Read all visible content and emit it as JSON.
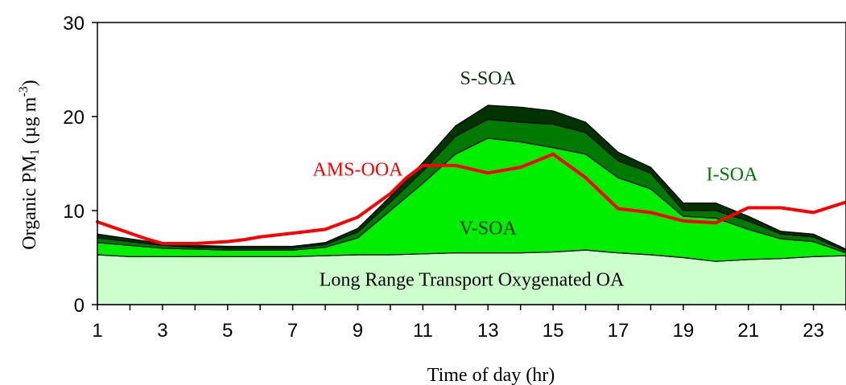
{
  "chart_data": {
    "type": "area",
    "xlabel": "Time of day (hr)",
    "ylabel": "Organic PM₁ (µg m⁻³)",
    "ylabel_parts": {
      "main": "Organic PM",
      "sub": "1",
      "unit_open": " (µg m",
      "sup": "-3",
      "unit_close": ")"
    },
    "xlim": [
      1,
      24
    ],
    "ylim": [
      0,
      30
    ],
    "x_ticks": [
      1,
      3,
      5,
      7,
      9,
      11,
      13,
      15,
      17,
      19,
      21,
      23
    ],
    "y_ticks": [
      0,
      10,
      20,
      30
    ],
    "grid": false,
    "x": [
      1,
      2,
      3,
      4,
      5,
      6,
      7,
      8,
      9,
      10,
      11,
      12,
      13,
      14,
      15,
      16,
      17,
      18,
      19,
      20,
      21,
      22,
      23,
      24
    ],
    "stacked_series": [
      {
        "name": "Long Range Transport Oxygenated OA",
        "color": "#ccffcc",
        "values": [
          5.3,
          5.1,
          5.1,
          5.1,
          5.1,
          5.1,
          5.1,
          5.2,
          5.3,
          5.3,
          5.4,
          5.5,
          5.5,
          5.5,
          5.6,
          5.8,
          5.5,
          5.3,
          5.0,
          4.6,
          4.8,
          4.9,
          5.1,
          5.2
        ]
      },
      {
        "name": "V-SOA",
        "color": "#00ee00",
        "values": [
          1.3,
          1.2,
          0.9,
          0.8,
          0.7,
          0.7,
          0.7,
          0.9,
          1.8,
          4.7,
          7.5,
          10.5,
          12.2,
          11.8,
          11.1,
          10.2,
          8.0,
          7.0,
          4.4,
          4.6,
          3.2,
          2.1,
          1.6,
          0.3
        ]
      },
      {
        "name": "I-SOA",
        "color": "#007a00",
        "values": [
          0.5,
          0.4,
          0.3,
          0.2,
          0.2,
          0.2,
          0.2,
          0.3,
          0.6,
          0.9,
          1.3,
          1.9,
          2.0,
          2.1,
          2.5,
          2.3,
          1.8,
          1.7,
          0.6,
          0.8,
          0.9,
          0.5,
          0.5,
          0.2
        ]
      },
      {
        "name": "S-SOA",
        "color": "#003300",
        "values": [
          0.4,
          0.3,
          0.2,
          0.2,
          0.2,
          0.2,
          0.2,
          0.2,
          0.4,
          0.6,
          0.9,
          1.1,
          1.5,
          1.6,
          1.4,
          1.1,
          0.9,
          0.6,
          0.8,
          0.8,
          0.5,
          0.3,
          0.3,
          0.2
        ]
      }
    ],
    "series": [
      {
        "name": "AMS-OOA",
        "type": "line",
        "color": "#ff0000",
        "x": [
          1,
          1.5,
          2,
          2.5,
          3,
          4,
          5,
          5.5,
          6,
          7,
          8,
          9,
          10,
          10.5,
          11,
          12,
          13,
          14,
          15,
          16,
          17,
          18,
          19,
          20,
          21,
          21.5,
          22,
          23,
          24
        ],
        "values": [
          8.8,
          8.2,
          7.6,
          7.0,
          6.5,
          6.5,
          6.7,
          6.9,
          7.2,
          7.6,
          8.0,
          9.3,
          11.8,
          13.5,
          14.8,
          14.8,
          14.0,
          14.6,
          16.0,
          13.5,
          10.2,
          9.8,
          8.9,
          8.7,
          10.3,
          10.3,
          10.3,
          9.8,
          10.9
        ]
      }
    ],
    "annotations": [
      {
        "text": "S-SOA",
        "color": "#003300",
        "x": 13.0,
        "y": 23.4
      },
      {
        "text": "AMS-OOA",
        "color": "#ff0000",
        "x": 9.0,
        "y": 13.7
      },
      {
        "text": "I-SOA",
        "color": "#007a00",
        "x": 20.5,
        "y": 13.2
      },
      {
        "text": "V-SOA",
        "color": "#003300",
        "x": 13.0,
        "y": 7.5
      },
      {
        "text": "Long Range Transport Oxygenated OA",
        "color": "#000000",
        "x": 12.5,
        "y": 2.0
      }
    ]
  }
}
